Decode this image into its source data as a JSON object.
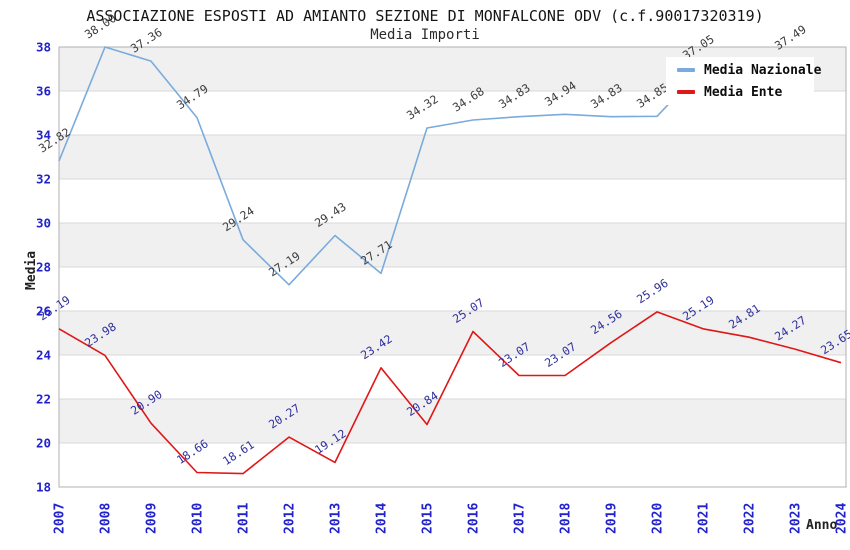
{
  "header": {
    "title": "ASSOCIAZIONE ESPOSTI AD AMIANTO SEZIONE DI MONFALCONE ODV (c.f.90017320319)",
    "subtitle": "Media Importi"
  },
  "axes": {
    "x_title": "Anno",
    "y_title": "Media",
    "x_ticks": [
      "2007",
      "2008",
      "2009",
      "2010",
      "2011",
      "2012",
      "2013",
      "2014",
      "2015",
      "2016",
      "2017",
      "2018",
      "2019",
      "2020",
      "2021",
      "2022",
      "2023",
      "2024"
    ],
    "y_ticks": [
      18,
      20,
      22,
      24,
      26,
      28,
      30,
      32,
      34,
      36,
      38
    ],
    "tick_color": "#2222cc"
  },
  "legend": {
    "items": [
      {
        "label": "Media Nazionale",
        "color": "#7aabdc"
      },
      {
        "label": "Media Ente",
        "color": "#e01717"
      }
    ]
  },
  "palette": {
    "band_fill": "#f0f0f0",
    "gridline": "#d9d9d9",
    "frame": "#b0b0b0",
    "background": "#ffffff"
  },
  "chart_data": {
    "type": "line",
    "title": "ASSOCIAZIONE ESPOSTI AD AMIANTO SEZIONE DI MONFALCONE ODV (c.f.90017320319)",
    "subtitle": "Media Importi",
    "xlabel": "Anno",
    "ylabel": "Media",
    "ylim": [
      18,
      38
    ],
    "y_tick_step": 2,
    "grid": "horizontal-bands-alternating",
    "legend_position": "top-right-inside",
    "categories": [
      "2007",
      "2008",
      "2009",
      "2010",
      "2011",
      "2012",
      "2013",
      "2014",
      "2015",
      "2016",
      "2017",
      "2018",
      "2019",
      "2020",
      "2021",
      "2022",
      "2023",
      "2024"
    ],
    "series": [
      {
        "name": "Media Nazionale",
        "color": "#7aabdc",
        "label_color": "#3c3c3c",
        "values": [
          32.82,
          38.0,
          37.36,
          34.79,
          29.24,
          27.19,
          29.43,
          27.71,
          34.32,
          34.68,
          34.83,
          34.94,
          34.83,
          34.85,
          37.05,
          37.2,
          37.49,
          null
        ],
        "point_labels": [
          "32.82",
          "38.00",
          "37.36",
          "34.79",
          "29.24",
          "27.19",
          "29.43",
          "27.71",
          "34.32",
          "34.68",
          "34.83",
          "34.94",
          "34.83",
          "34.85",
          "37.05",
          "",
          "37.49",
          ""
        ]
      },
      {
        "name": "Media Ente",
        "color": "#e01717",
        "label_color": "#2f2f9e",
        "values": [
          25.19,
          23.98,
          20.9,
          18.66,
          18.61,
          20.27,
          19.12,
          23.42,
          20.84,
          25.07,
          23.07,
          23.07,
          24.56,
          25.96,
          25.19,
          24.81,
          24.27,
          23.65
        ],
        "point_labels": [
          "25.19",
          "23.98",
          "20.90",
          "18.66",
          "18.61",
          "20.27",
          "19.12",
          "23.42",
          "20.84",
          "25.07",
          "23.07",
          "23.07",
          "24.56",
          "25.96",
          "25.19",
          "24.81",
          "24.27",
          "23.65"
        ]
      }
    ]
  }
}
